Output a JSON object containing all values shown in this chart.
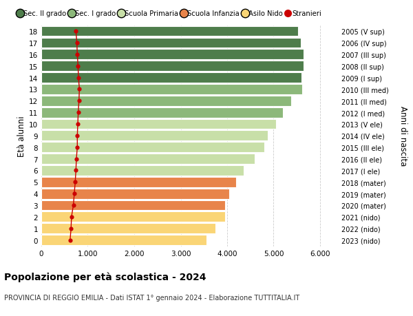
{
  "ages": [
    0,
    1,
    2,
    3,
    4,
    5,
    6,
    7,
    8,
    9,
    10,
    11,
    12,
    13,
    14,
    15,
    16,
    17,
    18
  ],
  "right_labels": [
    "2023 (nido)",
    "2022 (nido)",
    "2021 (nido)",
    "2020 (mater)",
    "2019 (mater)",
    "2018 (mater)",
    "2017 (I ele)",
    "2016 (II ele)",
    "2015 (III ele)",
    "2014 (IV ele)",
    "2013 (V ele)",
    "2012 (I med)",
    "2011 (II med)",
    "2010 (III med)",
    "2009 (I sup)",
    "2008 (II sup)",
    "2007 (III sup)",
    "2006 (IV sup)",
    "2005 (V sup)"
  ],
  "bar_values": [
    3550,
    3750,
    3950,
    3950,
    4050,
    4200,
    4350,
    4600,
    4800,
    4870,
    5050,
    5200,
    5380,
    5620,
    5600,
    5650,
    5640,
    5580,
    5530
  ],
  "stranieri_values": [
    620,
    640,
    650,
    690,
    710,
    730,
    745,
    755,
    775,
    775,
    785,
    795,
    810,
    820,
    800,
    790,
    775,
    765,
    745
  ],
  "bar_colors": [
    "#FAD576",
    "#FAD576",
    "#FAD576",
    "#E8844A",
    "#E8844A",
    "#E8844A",
    "#C8DFA8",
    "#C8DFA8",
    "#C8DFA8",
    "#C8DFA8",
    "#C8DFA8",
    "#8CB87A",
    "#8CB87A",
    "#8CB87A",
    "#4E7D4B",
    "#4E7D4B",
    "#4E7D4B",
    "#4E7D4B",
    "#4E7D4B"
  ],
  "legend_labels": [
    "Sec. II grado",
    "Sec. I grado",
    "Scuola Primaria",
    "Scuola Infanzia",
    "Asilo Nido",
    "Stranieri"
  ],
  "legend_colors": [
    "#4E7D4B",
    "#8CB87A",
    "#C8DFA8",
    "#E8844A",
    "#FAD576",
    "#CC0000"
  ],
  "xtick_vals": [
    0,
    1000,
    2000,
    3000,
    4000,
    5000,
    6000
  ],
  "xlim": [
    0,
    6400
  ],
  "title_bold": "Popolazione per età scolastica - 2024",
  "subtitle": "PROVINCIA DI REGGIO EMILIA - Dati ISTAT 1° gennaio 2024 - Elaborazione TUTTITALIA.IT",
  "ylabel": "Età alunni",
  "ylabel_right": "Anni di nascita",
  "bg_color": "#FFFFFF",
  "grid_color": "#CCCCCC",
  "bar_height": 0.88
}
